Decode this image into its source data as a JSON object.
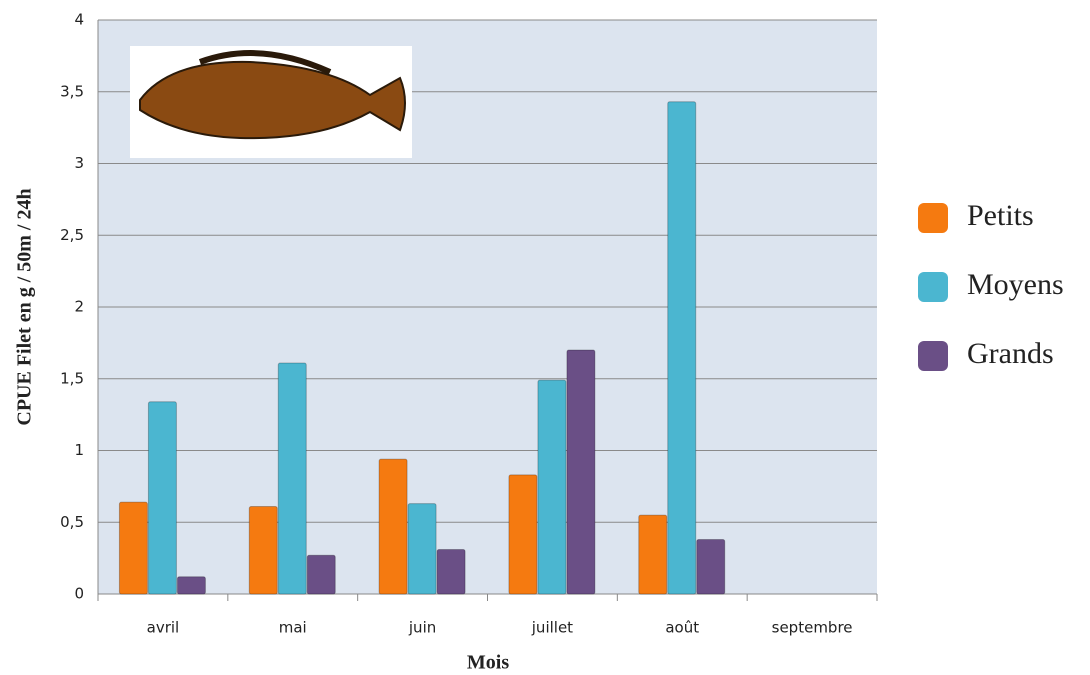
{
  "chart_data": {
    "type": "bar",
    "y_label": "CPUE Filet en g / 50m / 24h",
    "x_label": "Mois",
    "categories": [
      "avril",
      "mai",
      "juin",
      "juillet",
      "août",
      "septembre"
    ],
    "series": [
      {
        "name": "Petits",
        "color": "#f57a10",
        "values": [
          0.64,
          0.61,
          0.94,
          0.83,
          0.55,
          null
        ]
      },
      {
        "name": "Moyens",
        "color": "#4bb6d0",
        "values": [
          1.34,
          1.61,
          0.63,
          1.49,
          3.43,
          null
        ]
      },
      {
        "name": "Grands",
        "color": "#6a4f86",
        "values": [
          0.12,
          0.27,
          0.31,
          1.7,
          0.38,
          null
        ]
      }
    ],
    "ylim": [
      0,
      4
    ],
    "yticks": [
      0,
      {
        "value": 0.5,
        "label": "0,5"
      },
      1,
      {
        "value": 1.5,
        "label": "1,5"
      },
      2,
      {
        "value": 2.5,
        "label": "2,5"
      },
      3,
      {
        "value": 3.5,
        "label": "3,5"
      },
      4
    ],
    "grid": true,
    "legend": "right"
  }
}
